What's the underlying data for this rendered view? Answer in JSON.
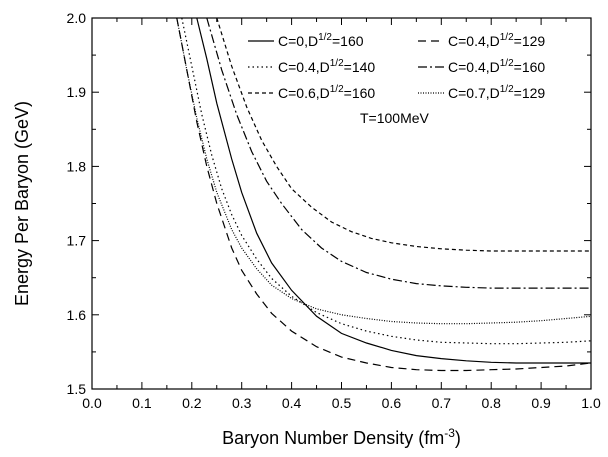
{
  "chart_data": {
    "type": "line",
    "xlabel": "Baryon Number Density (fm",
    "xlabel_sup": "-3",
    "xlabel_close": ")",
    "ylabel": "Energy Per Baryon (GeV)",
    "xlim": [
      0.0,
      1.0
    ],
    "ylim": [
      1.5,
      2.0
    ],
    "x_ticks": [
      "0.0",
      "0.1",
      "0.2",
      "0.3",
      "0.4",
      "0.5",
      "0.6",
      "0.7",
      "0.8",
      "0.9",
      "1.0"
    ],
    "y_ticks": [
      "1.5",
      "1.6",
      "1.7",
      "1.8",
      "1.9",
      "2.0"
    ],
    "annotation": "T=100MeV",
    "legend_position": "top-right",
    "series": [
      {
        "label_main": "C=0,D",
        "label_sup": "1/2",
        "label_tail": "=160",
        "dash": "solid",
        "x": [
          0.21,
          0.23,
          0.25,
          0.28,
          0.3,
          0.33,
          0.36,
          0.4,
          0.45,
          0.5,
          0.55,
          0.6,
          0.65,
          0.7,
          0.75,
          0.8,
          0.85,
          0.9,
          0.95,
          1.0
        ],
        "y": [
          2.0,
          1.945,
          1.885,
          1.81,
          1.765,
          1.71,
          1.67,
          1.633,
          1.598,
          1.575,
          1.562,
          1.552,
          1.545,
          1.541,
          1.538,
          1.536,
          1.535,
          1.535,
          1.535,
          1.535
        ]
      },
      {
        "label_main": "C=0.4,D",
        "label_sup": "1/2",
        "label_tail": "=129",
        "dash": "dashed",
        "x": [
          0.17,
          0.19,
          0.21,
          0.23,
          0.25,
          0.28,
          0.3,
          0.33,
          0.36,
          0.4,
          0.45,
          0.5,
          0.55,
          0.6,
          0.65,
          0.7,
          0.75,
          0.8,
          0.85,
          0.9,
          0.95,
          1.0
        ],
        "y": [
          2.0,
          1.93,
          1.86,
          1.8,
          1.75,
          1.69,
          1.66,
          1.628,
          1.602,
          1.578,
          1.557,
          1.543,
          1.535,
          1.529,
          1.526,
          1.525,
          1.525,
          1.526,
          1.527,
          1.529,
          1.531,
          1.535
        ]
      },
      {
        "label_main": "C=0.4,D",
        "label_sup": "1/2",
        "label_tail": "=140",
        "dash": "dotted",
        "x": [
          0.18,
          0.2,
          0.22,
          0.24,
          0.26,
          0.28,
          0.3,
          0.33,
          0.36,
          0.4,
          0.45,
          0.5,
          0.55,
          0.6,
          0.65,
          0.7,
          0.75,
          0.8,
          0.85,
          0.9,
          0.95,
          1.0
        ],
        "y": [
          2.0,
          1.935,
          1.87,
          1.815,
          1.77,
          1.735,
          1.707,
          1.675,
          1.649,
          1.625,
          1.603,
          1.588,
          1.578,
          1.571,
          1.566,
          1.563,
          1.562,
          1.561,
          1.561,
          1.562,
          1.563,
          1.565
        ]
      },
      {
        "label_main": "C=0.4,D",
        "label_sup": "1/2",
        "label_tail": "=160",
        "dash": "dashdot",
        "x": [
          0.23,
          0.26,
          0.29,
          0.32,
          0.35,
          0.38,
          0.42,
          0.46,
          0.5,
          0.55,
          0.6,
          0.65,
          0.7,
          0.75,
          0.8,
          0.85,
          0.9,
          0.95,
          1.0
        ],
        "y": [
          2.0,
          1.93,
          1.87,
          1.82,
          1.78,
          1.75,
          1.715,
          1.69,
          1.672,
          1.657,
          1.648,
          1.642,
          1.639,
          1.637,
          1.636,
          1.636,
          1.636,
          1.636,
          1.636
        ]
      },
      {
        "label_main": "C=0.6,D",
        "label_sup": "1/2",
        "label_tail": "=160",
        "dash": "shortdash",
        "x": [
          0.25,
          0.28,
          0.31,
          0.34,
          0.37,
          0.4,
          0.44,
          0.48,
          0.52,
          0.56,
          0.6,
          0.65,
          0.7,
          0.75,
          0.8,
          0.85,
          0.9,
          0.95,
          1.0
        ],
        "y": [
          2.0,
          1.935,
          1.88,
          1.835,
          1.8,
          1.77,
          1.745,
          1.725,
          1.712,
          1.703,
          1.697,
          1.692,
          1.689,
          1.687,
          1.686,
          1.686,
          1.686,
          1.686,
          1.686
        ]
      },
      {
        "label_main": "C=0.7,D",
        "label_sup": "1/2",
        "label_tail": "=129",
        "dash": "densedot",
        "x": [
          0.17,
          0.19,
          0.21,
          0.23,
          0.25,
          0.28,
          0.3,
          0.33,
          0.36,
          0.4,
          0.45,
          0.5,
          0.55,
          0.6,
          0.65,
          0.7,
          0.75,
          0.8,
          0.85,
          0.9,
          0.95,
          1.0
        ],
        "y": [
          2.0,
          1.93,
          1.865,
          1.81,
          1.765,
          1.715,
          1.69,
          1.662,
          1.64,
          1.622,
          1.608,
          1.6,
          1.595,
          1.591,
          1.589,
          1.588,
          1.588,
          1.589,
          1.59,
          1.592,
          1.595,
          1.598
        ]
      }
    ]
  }
}
